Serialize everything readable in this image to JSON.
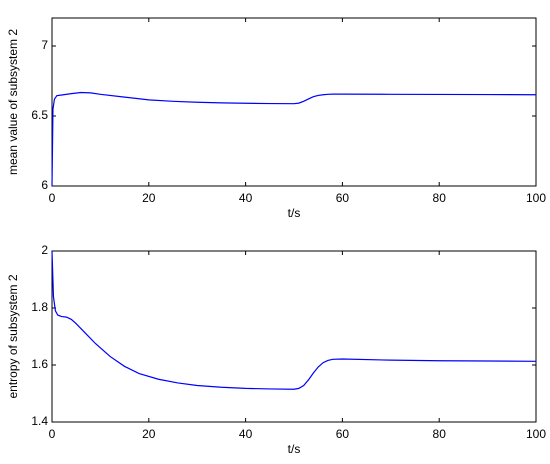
{
  "chart_data": [
    {
      "type": "line",
      "xlabel": "t/s",
      "ylabel": "mean value of subsystem 2",
      "xlim": [
        0,
        100
      ],
      "xticks": [
        0,
        20,
        40,
        60,
        80,
        100
      ],
      "ylim": [
        6,
        7.2
      ],
      "yticks": [
        6,
        6.5,
        7
      ],
      "series": [
        {
          "color": "#0000ff",
          "x": [
            0,
            0.2,
            0.5,
            1,
            2,
            4,
            6,
            8,
            10,
            15,
            20,
            25,
            30,
            35,
            40,
            45,
            50,
            51,
            52,
            53,
            54,
            55,
            56,
            57,
            58,
            60,
            70,
            80,
            90,
            100
          ],
          "values": [
            6,
            6.55,
            6.62,
            6.645,
            6.65,
            6.66,
            6.668,
            6.665,
            6.655,
            6.635,
            6.615,
            6.605,
            6.598,
            6.594,
            6.591,
            6.589,
            6.588,
            6.592,
            6.605,
            6.622,
            6.638,
            6.647,
            6.652,
            6.655,
            6.656,
            6.656,
            6.655,
            6.654,
            6.653,
            6.652
          ]
        }
      ]
    },
    {
      "type": "line",
      "xlabel": "t/s",
      "ylabel": "entropy of subsystem 2",
      "xlim": [
        0,
        100
      ],
      "xticks": [
        0,
        20,
        40,
        60,
        80,
        100
      ],
      "ylim": [
        1.4,
        2
      ],
      "yticks": [
        1.4,
        1.6,
        1.8,
        2
      ],
      "series": [
        {
          "color": "#0000ff",
          "x": [
            0,
            0.3,
            0.7,
            1.2,
            2,
            3,
            4,
            5,
            7,
            9,
            12,
            15,
            18,
            22,
            26,
            30,
            35,
            40,
            45,
            50,
            51,
            52,
            53,
            54,
            55,
            56,
            57,
            58,
            60,
            70,
            80,
            90,
            100
          ],
          "values": [
            2,
            1.84,
            1.79,
            1.775,
            1.77,
            1.768,
            1.76,
            1.745,
            1.71,
            1.675,
            1.63,
            1.595,
            1.57,
            1.55,
            1.537,
            1.528,
            1.522,
            1.518,
            1.516,
            1.515,
            1.518,
            1.528,
            1.548,
            1.572,
            1.593,
            1.608,
            1.616,
            1.62,
            1.621,
            1.617,
            1.615,
            1.614,
            1.613
          ]
        }
      ]
    }
  ]
}
